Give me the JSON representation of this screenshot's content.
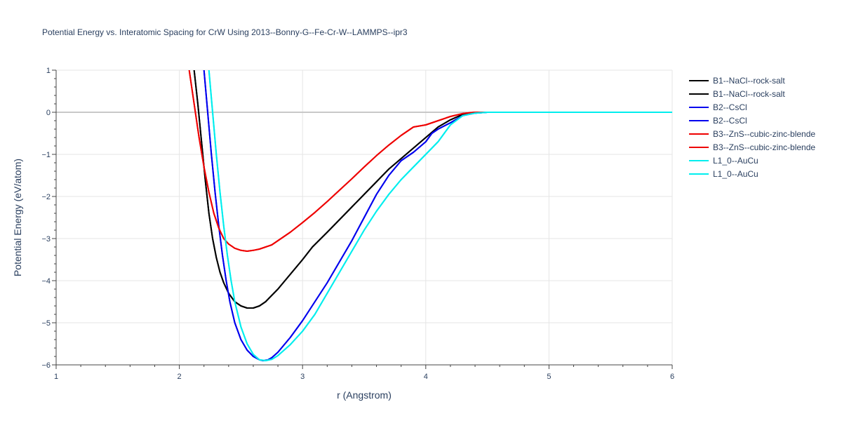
{
  "chart_data": {
    "type": "line",
    "title": "Potential Energy vs. Interatomic Spacing for CrW Using 2013--Bonny-G--Fe-Cr-W--LAMMPS--ipr3",
    "xlabel": "r (Angstrom)",
    "ylabel": "Potential Energy (eV/atom)",
    "xlim": [
      1,
      6
    ],
    "ylim": [
      -6,
      1
    ],
    "x_ticks": [
      1,
      2,
      3,
      4,
      5,
      6
    ],
    "y_ticks": [
      1,
      0,
      -1,
      -2,
      -3,
      -4,
      -5,
      -6
    ],
    "x_tick_labels": [
      "1",
      "2",
      "3",
      "4",
      "5",
      "6"
    ],
    "y_tick_labels": [
      "1",
      "0",
      "−1",
      "−2",
      "−3",
      "−4",
      "−5",
      "−6"
    ],
    "grid": true,
    "legend_position": "top-right",
    "series": [
      {
        "name": "B1--NaCl--rock-salt",
        "color": "#000000",
        "x": [
          2.12,
          2.15,
          2.18,
          2.21,
          2.24,
          2.27,
          2.3,
          2.33,
          2.36,
          2.4,
          2.45,
          2.5,
          2.55,
          2.6,
          2.65,
          2.7,
          2.8,
          2.9,
          3.0,
          3.08,
          3.2,
          3.3,
          3.4,
          3.5,
          3.6,
          3.7,
          3.8,
          3.9,
          4.0,
          4.1,
          4.2,
          4.3,
          4.4,
          4.5,
          5.0,
          6.0
        ],
        "y": [
          1.0,
          0.2,
          -0.7,
          -1.6,
          -2.4,
          -3.0,
          -3.45,
          -3.8,
          -4.05,
          -4.3,
          -4.5,
          -4.6,
          -4.65,
          -4.65,
          -4.6,
          -4.5,
          -4.2,
          -3.85,
          -3.5,
          -3.2,
          -2.85,
          -2.55,
          -2.25,
          -1.95,
          -1.65,
          -1.35,
          -1.1,
          -0.85,
          -0.6,
          -0.35,
          -0.18,
          -0.05,
          0.0,
          0.0,
          0.0,
          0.0
        ]
      },
      {
        "name": "B1--NaCl--rock-salt",
        "color": "#000000",
        "x": [
          2.12,
          2.15,
          2.18,
          2.21,
          2.24,
          2.27,
          2.3,
          2.33,
          2.36,
          2.4,
          2.45,
          2.5,
          2.55,
          2.6,
          2.65,
          2.7,
          2.8,
          2.9,
          3.0,
          3.08,
          3.2,
          3.3,
          3.4,
          3.5,
          3.6,
          3.7,
          3.8,
          3.9,
          4.0,
          4.1,
          4.2,
          4.3,
          4.4,
          4.5,
          5.0,
          6.0
        ],
        "y": [
          1.0,
          0.2,
          -0.7,
          -1.6,
          -2.4,
          -3.0,
          -3.45,
          -3.8,
          -4.05,
          -4.3,
          -4.5,
          -4.6,
          -4.65,
          -4.65,
          -4.6,
          -4.5,
          -4.2,
          -3.85,
          -3.5,
          -3.2,
          -2.85,
          -2.55,
          -2.25,
          -1.95,
          -1.65,
          -1.35,
          -1.1,
          -0.85,
          -0.6,
          -0.35,
          -0.18,
          -0.05,
          0.0,
          0.0,
          0.0,
          0.0
        ]
      },
      {
        "name": "B2--CsCl",
        "color": "#0000ee",
        "x": [
          2.2,
          2.23,
          2.26,
          2.29,
          2.32,
          2.35,
          2.38,
          2.41,
          2.45,
          2.5,
          2.55,
          2.6,
          2.65,
          2.68,
          2.72,
          2.75,
          2.8,
          2.9,
          3.0,
          3.1,
          3.2,
          3.3,
          3.4,
          3.5,
          3.6,
          3.7,
          3.8,
          3.9,
          4.0,
          4.05,
          4.1,
          4.2,
          4.3,
          4.4,
          4.5,
          5.0,
          6.0
        ],
        "y": [
          1.0,
          0.0,
          -1.0,
          -1.9,
          -2.7,
          -3.4,
          -4.0,
          -4.5,
          -5.0,
          -5.4,
          -5.65,
          -5.8,
          -5.88,
          -5.9,
          -5.88,
          -5.83,
          -5.7,
          -5.35,
          -4.95,
          -4.5,
          -4.05,
          -3.55,
          -3.05,
          -2.5,
          -1.95,
          -1.5,
          -1.15,
          -0.95,
          -0.7,
          -0.5,
          -0.4,
          -0.25,
          -0.08,
          -0.02,
          0.0,
          0.0,
          0.0
        ]
      },
      {
        "name": "B2--CsCl",
        "color": "#0000ee",
        "x": [
          2.2,
          2.23,
          2.26,
          2.29,
          2.32,
          2.35,
          2.38,
          2.41,
          2.45,
          2.5,
          2.55,
          2.6,
          2.65,
          2.68,
          2.72,
          2.75,
          2.8,
          2.9,
          3.0,
          3.1,
          3.2,
          3.3,
          3.4,
          3.5,
          3.6,
          3.7,
          3.8,
          3.9,
          4.0,
          4.05,
          4.1,
          4.2,
          4.3,
          4.4,
          4.5,
          5.0,
          6.0
        ],
        "y": [
          1.0,
          0.0,
          -1.0,
          -1.9,
          -2.7,
          -3.4,
          -4.0,
          -4.5,
          -5.0,
          -5.4,
          -5.65,
          -5.8,
          -5.88,
          -5.9,
          -5.88,
          -5.83,
          -5.7,
          -5.35,
          -4.95,
          -4.5,
          -4.05,
          -3.55,
          -3.05,
          -2.5,
          -1.95,
          -1.5,
          -1.15,
          -0.95,
          -0.7,
          -0.5,
          -0.4,
          -0.25,
          -0.08,
          -0.02,
          0.0,
          0.0,
          0.0
        ]
      },
      {
        "name": "B3--ZnS--cubic-zinc-blende",
        "color": "#ee0000",
        "x": [
          2.08,
          2.12,
          2.16,
          2.2,
          2.24,
          2.28,
          2.32,
          2.36,
          2.4,
          2.45,
          2.5,
          2.55,
          2.6,
          2.65,
          2.7,
          2.75,
          2.8,
          2.9,
          3.0,
          3.1,
          3.2,
          3.3,
          3.4,
          3.5,
          3.6,
          3.7,
          3.8,
          3.9,
          4.0,
          4.05,
          4.1,
          4.2,
          4.3,
          4.4,
          4.5,
          5.0,
          6.0
        ],
        "y": [
          1.0,
          0.2,
          -0.6,
          -1.3,
          -1.9,
          -2.4,
          -2.75,
          -3.0,
          -3.13,
          -3.23,
          -3.28,
          -3.3,
          -3.28,
          -3.25,
          -3.2,
          -3.15,
          -3.05,
          -2.85,
          -2.62,
          -2.38,
          -2.12,
          -1.85,
          -1.58,
          -1.3,
          -1.03,
          -0.78,
          -0.55,
          -0.35,
          -0.3,
          -0.25,
          -0.2,
          -0.1,
          -0.03,
          0.0,
          0.0,
          0.0,
          0.0
        ]
      },
      {
        "name": "B3--ZnS--cubic-zinc-blende",
        "color": "#ee0000",
        "x": [
          2.08,
          2.12,
          2.16,
          2.2,
          2.24,
          2.28,
          2.32,
          2.36,
          2.4,
          2.45,
          2.5,
          2.55,
          2.6,
          2.65,
          2.7,
          2.75,
          2.8,
          2.9,
          3.0,
          3.1,
          3.2,
          3.3,
          3.4,
          3.5,
          3.6,
          3.7,
          3.8,
          3.9,
          4.0,
          4.05,
          4.1,
          4.2,
          4.3,
          4.4,
          4.5,
          5.0,
          6.0
        ],
        "y": [
          1.0,
          0.2,
          -0.6,
          -1.3,
          -1.9,
          -2.4,
          -2.75,
          -3.0,
          -3.13,
          -3.23,
          -3.28,
          -3.3,
          -3.28,
          -3.25,
          -3.2,
          -3.15,
          -3.05,
          -2.85,
          -2.62,
          -2.38,
          -2.12,
          -1.85,
          -1.58,
          -1.3,
          -1.03,
          -0.78,
          -0.55,
          -0.35,
          -0.3,
          -0.25,
          -0.2,
          -0.1,
          -0.03,
          0.0,
          0.0,
          0.0,
          0.0
        ]
      },
      {
        "name": "L1_0--AuCu",
        "color": "#00eeee",
        "x": [
          2.24,
          2.27,
          2.3,
          2.33,
          2.36,
          2.39,
          2.42,
          2.45,
          2.5,
          2.55,
          2.6,
          2.65,
          2.7,
          2.75,
          2.8,
          2.9,
          3.0,
          3.1,
          3.2,
          3.3,
          3.4,
          3.5,
          3.6,
          3.7,
          3.8,
          3.9,
          4.0,
          4.1,
          4.15,
          4.2,
          4.3,
          4.4,
          4.5,
          5.0,
          6.0
        ],
        "y": [
          1.0,
          0.0,
          -1.0,
          -1.9,
          -2.7,
          -3.4,
          -4.0,
          -4.5,
          -5.1,
          -5.5,
          -5.75,
          -5.88,
          -5.9,
          -5.87,
          -5.78,
          -5.52,
          -5.2,
          -4.8,
          -4.3,
          -3.8,
          -3.3,
          -2.8,
          -2.35,
          -1.95,
          -1.6,
          -1.3,
          -1.0,
          -0.7,
          -0.5,
          -0.3,
          -0.08,
          -0.02,
          0.0,
          0.0,
          0.0
        ]
      },
      {
        "name": "L1_0--AuCu",
        "color": "#00eeee",
        "x": [
          2.24,
          2.27,
          2.3,
          2.33,
          2.36,
          2.39,
          2.42,
          2.45,
          2.5,
          2.55,
          2.6,
          2.65,
          2.7,
          2.75,
          2.8,
          2.9,
          3.0,
          3.1,
          3.2,
          3.3,
          3.4,
          3.5,
          3.6,
          3.7,
          3.8,
          3.9,
          4.0,
          4.1,
          4.15,
          4.2,
          4.3,
          4.4,
          4.5,
          5.0,
          6.0
        ],
        "y": [
          1.0,
          0.0,
          -1.0,
          -1.9,
          -2.7,
          -3.4,
          -4.0,
          -4.5,
          -5.1,
          -5.5,
          -5.75,
          -5.88,
          -5.9,
          -5.87,
          -5.78,
          -5.52,
          -5.2,
          -4.8,
          -4.3,
          -3.8,
          -3.3,
          -2.8,
          -2.35,
          -1.95,
          -1.6,
          -1.3,
          -1.0,
          -0.7,
          -0.5,
          -0.3,
          -0.08,
          -0.02,
          0.0,
          0.0,
          0.0
        ]
      }
    ]
  }
}
